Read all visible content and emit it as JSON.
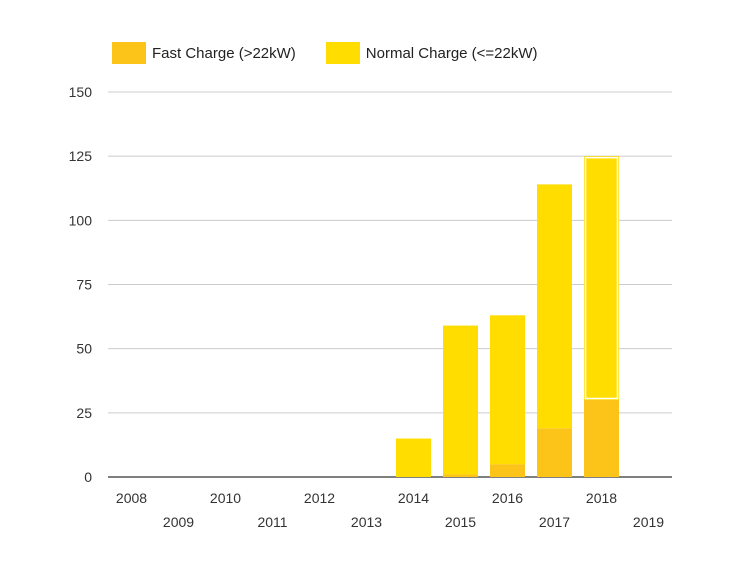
{
  "chart_data": {
    "type": "bar",
    "stacked": true,
    "categories": [
      "2008",
      "2009",
      "2010",
      "2011",
      "2012",
      "2013",
      "2014",
      "2015",
      "2016",
      "2017",
      "2018",
      "2019"
    ],
    "series": [
      {
        "name": "Fast Charge (>22kW)",
        "color": "#FCC419",
        "values": [
          0,
          0,
          0,
          0,
          0,
          0,
          0,
          1,
          5,
          19,
          30,
          0
        ]
      },
      {
        "name": "Normal Charge (<=22kW)",
        "color": "#FFDD00",
        "values": [
          0,
          0,
          0,
          0,
          0,
          0,
          15,
          58,
          58,
          95,
          95,
          0
        ]
      }
    ],
    "highlighted_category": "2018",
    "title": "",
    "xlabel": "",
    "ylabel": "",
    "ylim": [
      0,
      150
    ],
    "yticks": [
      0,
      25,
      50,
      75,
      100,
      125,
      150
    ],
    "grid": true,
    "legend_position": "top-left"
  }
}
